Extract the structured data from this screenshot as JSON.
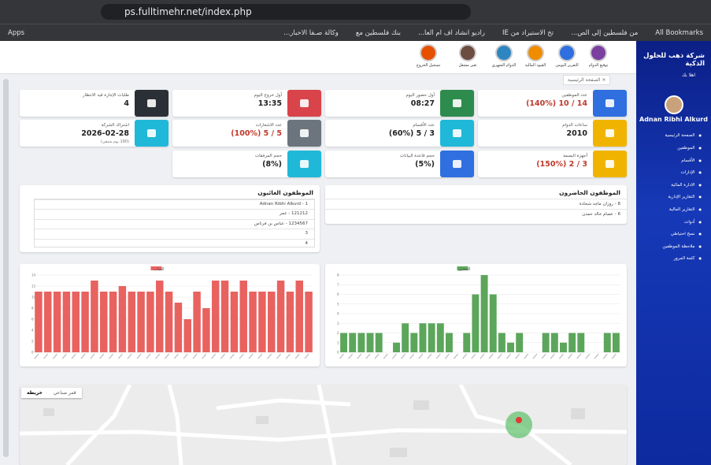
{
  "browser": {
    "url": "ps.fulltimehr.net/index.php",
    "apps": "Apps",
    "bookmarks": [
      "من فلسطين إلى الص...",
      "تخ الاستيراد من IE",
      "راديو انشاد اف ام العا...",
      "بنك فلسطين مع",
      "وكالة صـفا الاخبار..."
    ],
    "all_bookmarks": "All Bookmarks"
  },
  "toolbar": [
    "توقيع الدوام",
    "التقرير اليومي",
    "القيود المالية",
    "الدوام الشهري",
    "تغير مشغل",
    "تسجيل الخروج"
  ],
  "tab": "الصفحة الرئيسية",
  "cards": [
    {
      "label": "عدد الموظفين",
      "value": "14 / 10 (140%)",
      "color": "#2f6fe0",
      "value_color": "#c0392b"
    },
    {
      "label": "أول حضور اليوم",
      "value": "08:27",
      "color": "#2e8b4e"
    },
    {
      "label": "أول خروج اليوم",
      "value": "13:35",
      "color": "#d9444a"
    },
    {
      "label": "طلبات الإجازة قيد الانتظار",
      "value": "4",
      "color": "#2b2f36"
    },
    {
      "label": "ساعات الدوام",
      "value": "2010",
      "color": "#f0b400"
    },
    {
      "label": "عدد الأقسام",
      "value": "3 / 5 (60%)",
      "color": "#20b8d8"
    },
    {
      "label": "عدد الاشعارات",
      "value": "5 / 5 (100%)",
      "color": "#6c757d",
      "value_color": "#c0392b"
    },
    {
      "label": "اشتراك الشركة",
      "value": "2026-02-28",
      "note": "(190 يوم متبقي)",
      "color": "#20b8d8"
    },
    {
      "label": "أجهزة البصمة",
      "value": "3 / 2 (150%)",
      "color": "#f0b400",
      "value_color": "#c0392b"
    },
    {
      "label": "حجم قاعدة البيانات",
      "value": "(5%)",
      "color": "#2f6fe0"
    },
    {
      "label": "حجم المرفقات",
      "value": "(8%)",
      "color": "#20b8d8"
    }
  ],
  "present": {
    "title": "الموظفون الحاضرون",
    "items": [
      "8 - روزان ماجد شحادة",
      "6 - عصام خالد حمدن"
    ]
  },
  "absent": {
    "title": "الموظفون الغائبون",
    "items": [
      "Adnan Ribhi Alkurd - 1",
      "121212 - عمر",
      "1234567 - عباس بن فرناس",
      "3",
      "4"
    ]
  },
  "chart_data": [
    {
      "type": "bar",
      "series": [
        {
          "name": "الغياب",
          "color": "#e8625f",
          "values": [
            11,
            11,
            11,
            11,
            11,
            11,
            13,
            11,
            11,
            12,
            11,
            11,
            11,
            13,
            11,
            9,
            6,
            11,
            8,
            13,
            13,
            11,
            13,
            11,
            11,
            11,
            13,
            11,
            13,
            11
          ]
        }
      ],
      "ylim": [
        0,
        14
      ],
      "yticks": [
        0,
        2,
        4,
        6,
        8,
        10,
        12,
        14
      ],
      "grid": true
    },
    {
      "type": "bar",
      "series": [
        {
          "name": "الحضور",
          "color": "#5ba65b",
          "values": [
            2,
            2,
            2,
            2,
            2,
            0,
            1,
            3,
            2,
            3,
            3,
            3,
            2,
            0,
            2,
            6,
            8,
            6,
            2,
            1,
            2,
            0,
            0,
            2,
            2,
            1,
            2,
            2,
            0,
            0,
            2,
            2
          ]
        }
      ],
      "ylim": [
        0,
        8
      ],
      "yticks": [
        0,
        1,
        2,
        3,
        4,
        5,
        6,
        7,
        8
      ],
      "grid": true
    }
  ],
  "map": {
    "buttons": [
      "خريطة",
      "قمر صناعي"
    ]
  },
  "sidebar": {
    "company": "شركة ذهب للحلول الذكية",
    "greeting": "اهلا بك",
    "user": "Adnan Ribhi Alkurd",
    "menu": [
      "الصفحة الرئيسية",
      "الموظفين",
      "الأقسام",
      "الإدارات",
      "الادارة المالية",
      "التقارير الإدارية",
      "التقارير المالية",
      "أدوات",
      "نسخ احتياطي",
      "ملاحظة الموظفين",
      "كلمة المرور"
    ]
  }
}
